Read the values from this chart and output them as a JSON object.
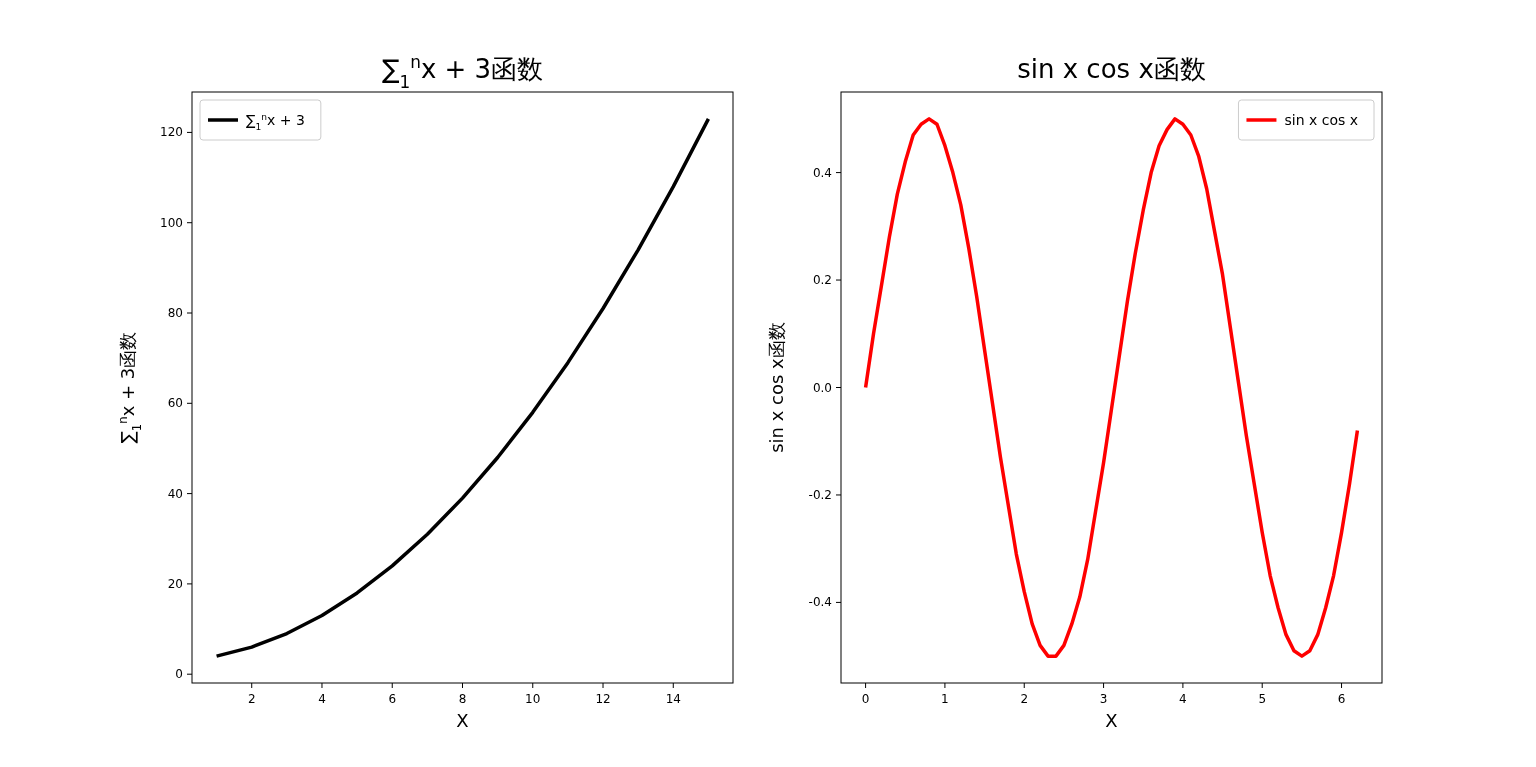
{
  "chart_data": [
    {
      "type": "line",
      "title": "∑$_{1}$$^{n}$x + 3函数",
      "xlabel": "X",
      "ylabel": "∑$_{1}$$^{n}$x + 3函数",
      "legend": "top left",
      "x": [
        1,
        2,
        3,
        4,
        5,
        6,
        7,
        8,
        9,
        10,
        11,
        12,
        13,
        14,
        15
      ],
      "series": [
        {
          "name": "∑$_{1}$$^{n}$x + 3",
          "color": "#000000",
          "values": [
            4,
            6,
            9,
            13,
            18,
            24,
            31,
            39,
            48,
            58,
            69,
            81,
            94,
            108,
            123
          ]
        }
      ],
      "xlim": [
        0.3,
        15.7
      ],
      "ylim": [
        -1.95,
        128.95
      ],
      "xticks": [
        2,
        4,
        6,
        8,
        10,
        12,
        14
      ],
      "yticks": [
        0,
        20,
        40,
        60,
        80,
        100,
        120
      ]
    },
    {
      "type": "line",
      "title": "sin x cos x函数",
      "xlabel": "X",
      "ylabel": "sin x cos x函数",
      "legend": "top right",
      "x": [
        0,
        0.1,
        0.2,
        0.3,
        0.4,
        0.5,
        0.6,
        0.7,
        0.8,
        0.9,
        1,
        1.1,
        1.2,
        1.3,
        1.4,
        1.5,
        1.6,
        1.7,
        1.8,
        1.9,
        2,
        2.1,
        2.2,
        2.3,
        2.4,
        2.5,
        2.6,
        2.7,
        2.8,
        2.9,
        3,
        3.1,
        3.2,
        3.3,
        3.4,
        3.5,
        3.6,
        3.7,
        3.8,
        3.9,
        4,
        4.1,
        4.2,
        4.3,
        4.4,
        4.5,
        4.6,
        4.7,
        4.8,
        4.9,
        5,
        5.1,
        5.2,
        5.3,
        5.4,
        5.5,
        5.6,
        5.7,
        5.8,
        5.9,
        6,
        6.1,
        6.2
      ],
      "series": [
        {
          "name": "sin x cos x",
          "color": "#ff0000",
          "values": [
            0,
            0.1,
            0.19,
            0.28,
            0.36,
            0.42,
            0.47,
            0.49,
            0.5,
            0.49,
            0.45,
            0.4,
            0.34,
            0.26,
            0.17,
            0.07,
            -0.03,
            -0.13,
            -0.22,
            -0.31,
            -0.38,
            -0.44,
            -0.48,
            -0.5,
            -0.5,
            -0.48,
            -0.44,
            -0.39,
            -0.32,
            -0.23,
            -0.14,
            -0.04,
            0.06,
            0.16,
            0.25,
            0.33,
            0.4,
            0.45,
            0.48,
            0.5,
            0.49,
            0.47,
            0.43,
            0.37,
            0.29,
            0.21,
            0.11,
            0.01,
            -0.09,
            -0.18,
            -0.27,
            -0.35,
            -0.41,
            -0.46,
            -0.49,
            -0.5,
            -0.49,
            -0.46,
            -0.41,
            -0.35,
            -0.27,
            -0.18,
            -0.08
          ]
        }
      ],
      "xlim": [
        -0.31,
        6.51
      ],
      "ylim": [
        -0.55,
        0.55
      ],
      "xticks": [
        0,
        1,
        2,
        3,
        4,
        5,
        6
      ],
      "yticks": [
        -0.4,
        -0.2,
        {
          "value": 0,
          "label": "0.0"
        },
        0.2,
        0.4
      ]
    }
  ]
}
